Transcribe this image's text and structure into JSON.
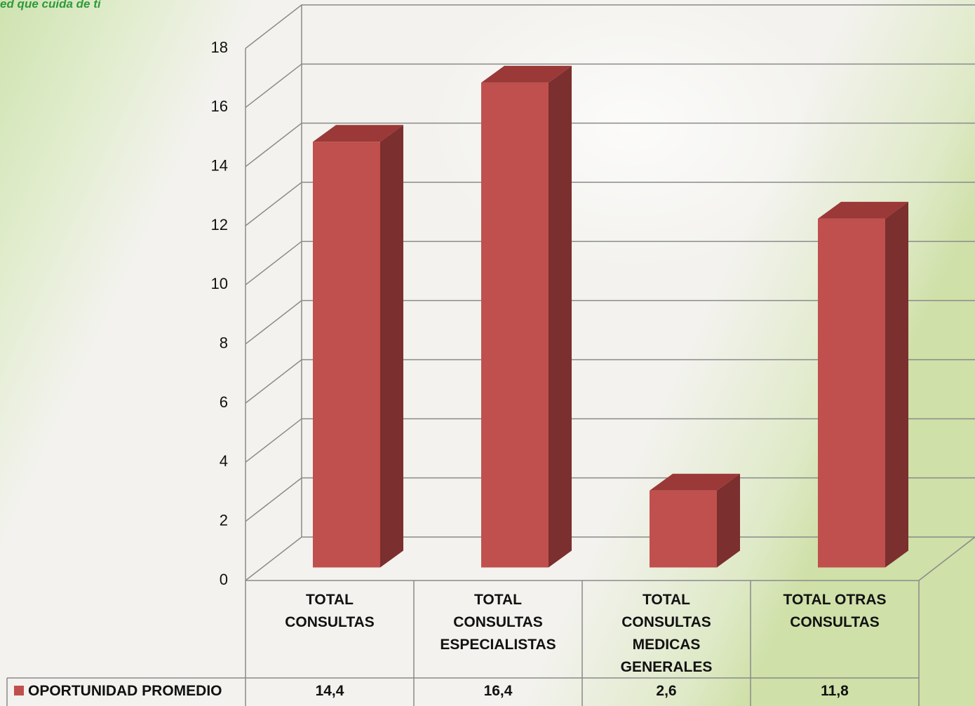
{
  "logo_text": "ed que cuida de ti",
  "chart_data": {
    "type": "bar3d",
    "categories": [
      "TOTAL CONSULTAS",
      "TOTAL CONSULTAS ESPECIALISTAS",
      "TOTAL CONSULTAS MEDICAS GENERALES",
      "TOTAL OTRAS CONSULTAS"
    ],
    "series": [
      {
        "name": "OPORTUNIDAD PROMEDIO",
        "color": "#c0504d",
        "values": [
          14.4,
          16.4,
          2.6,
          11.8
        ],
        "value_labels": [
          "14,4",
          "16,4",
          "2,6",
          "11,8"
        ]
      }
    ],
    "ylim": [
      0,
      18
    ],
    "yticks": [
      0,
      2,
      4,
      6,
      8,
      10,
      12,
      14,
      16,
      18
    ],
    "grid": true,
    "data_table": true
  }
}
